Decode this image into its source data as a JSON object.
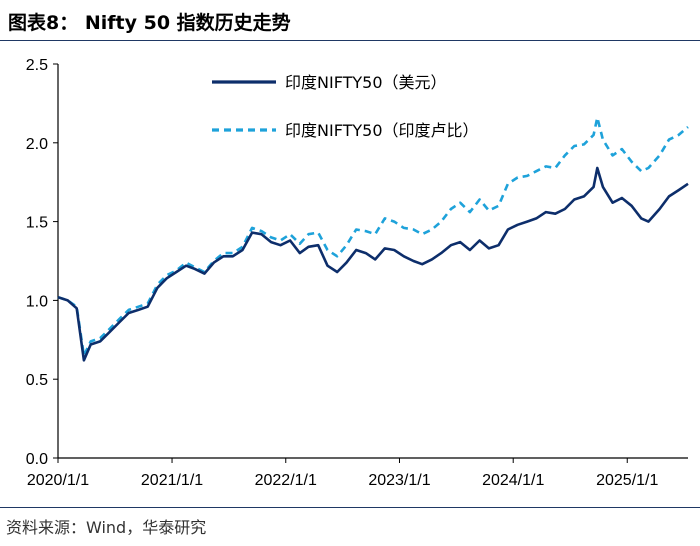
{
  "header": {
    "title": "图表8： Nifty 50 指数历史走势"
  },
  "footer": {
    "source": "资料来源：Wind，华泰研究"
  },
  "colors": {
    "usd": "#0d2e6b",
    "inr": "#1ea2da",
    "rule": "#1f3864",
    "axis": "#000000"
  },
  "chart_data": {
    "type": "line",
    "title": "",
    "xlabel": "",
    "ylabel": "",
    "ylim": [
      0,
      2.5
    ],
    "xlim": [
      "2020-01-01",
      "2025-07-15"
    ],
    "x_ticks": [
      "2020/1/1",
      "2021/1/1",
      "2022/1/1",
      "2023/1/1",
      "2024/1/1",
      "2025/1/1"
    ],
    "y_ticks": [
      "0.0",
      "0.5",
      "1.0",
      "1.5",
      "2.0",
      "2.5"
    ],
    "legend_position": "top-center",
    "grid": false,
    "series": [
      {
        "name": "印度NIFTY50（美元）",
        "style": "solid",
        "x": [
          "2020-01-01",
          "2020-02-01",
          "2020-03-01",
          "2020-03-24",
          "2020-04-15",
          "2020-05-15",
          "2020-06-15",
          "2020-07-15",
          "2020-08-15",
          "2020-09-15",
          "2020-10-15",
          "2020-11-15",
          "2020-12-15",
          "2021-01-15",
          "2021-02-15",
          "2021-03-15",
          "2021-04-15",
          "2021-05-15",
          "2021-06-15",
          "2021-07-15",
          "2021-08-15",
          "2021-09-15",
          "2021-10-15",
          "2021-11-15",
          "2021-12-15",
          "2022-01-15",
          "2022-02-15",
          "2022-03-15",
          "2022-04-15",
          "2022-05-15",
          "2022-06-15",
          "2022-07-15",
          "2022-08-15",
          "2022-09-15",
          "2022-10-15",
          "2022-11-15",
          "2022-12-15",
          "2023-01-15",
          "2023-02-15",
          "2023-03-15",
          "2023-04-15",
          "2023-05-15",
          "2023-06-15",
          "2023-07-15",
          "2023-08-15",
          "2023-09-15",
          "2023-10-15",
          "2023-11-15",
          "2023-12-15",
          "2024-01-15",
          "2024-02-15",
          "2024-03-15",
          "2024-04-15",
          "2024-05-15",
          "2024-06-15",
          "2024-07-15",
          "2024-08-15",
          "2024-09-15",
          "2024-09-27",
          "2024-10-15",
          "2024-11-15",
          "2024-12-15",
          "2025-01-15",
          "2025-02-15",
          "2025-03-10",
          "2025-04-15",
          "2025-05-15",
          "2025-06-15",
          "2025-07-15"
        ],
        "values": [
          1.02,
          1.0,
          0.95,
          0.62,
          0.72,
          0.74,
          0.8,
          0.86,
          0.92,
          0.94,
          0.96,
          1.08,
          1.14,
          1.18,
          1.22,
          1.2,
          1.17,
          1.24,
          1.28,
          1.28,
          1.32,
          1.43,
          1.42,
          1.37,
          1.35,
          1.38,
          1.3,
          1.34,
          1.35,
          1.22,
          1.18,
          1.24,
          1.32,
          1.3,
          1.26,
          1.33,
          1.32,
          1.28,
          1.25,
          1.23,
          1.26,
          1.3,
          1.35,
          1.37,
          1.32,
          1.38,
          1.33,
          1.35,
          1.45,
          1.48,
          1.5,
          1.52,
          1.56,
          1.55,
          1.58,
          1.64,
          1.66,
          1.72,
          1.84,
          1.72,
          1.62,
          1.65,
          1.6,
          1.52,
          1.5,
          1.58,
          1.66,
          1.7,
          1.74
        ]
      },
      {
        "name": "印度NIFTY50（印度卢比）",
        "style": "dashed",
        "x": [
          "2020-01-01",
          "2020-02-01",
          "2020-03-01",
          "2020-03-24",
          "2020-04-15",
          "2020-05-15",
          "2020-06-15",
          "2020-07-15",
          "2020-08-15",
          "2020-09-15",
          "2020-10-15",
          "2020-11-15",
          "2020-12-15",
          "2021-01-15",
          "2021-02-15",
          "2021-03-15",
          "2021-04-15",
          "2021-05-15",
          "2021-06-15",
          "2021-07-15",
          "2021-08-15",
          "2021-09-15",
          "2021-10-15",
          "2021-11-15",
          "2021-12-15",
          "2022-01-15",
          "2022-02-15",
          "2022-03-15",
          "2022-04-15",
          "2022-05-15",
          "2022-06-15",
          "2022-07-15",
          "2022-08-15",
          "2022-09-15",
          "2022-10-15",
          "2022-11-15",
          "2022-12-15",
          "2023-01-15",
          "2023-02-15",
          "2023-03-15",
          "2023-04-15",
          "2023-05-15",
          "2023-06-15",
          "2023-07-15",
          "2023-08-15",
          "2023-09-15",
          "2023-10-15",
          "2023-11-15",
          "2023-12-15",
          "2024-01-15",
          "2024-02-15",
          "2024-03-15",
          "2024-04-15",
          "2024-05-15",
          "2024-06-15",
          "2024-07-15",
          "2024-08-15",
          "2024-09-15",
          "2024-09-27",
          "2024-10-15",
          "2024-11-15",
          "2024-12-15",
          "2025-01-15",
          "2025-02-15",
          "2025-03-10",
          "2025-04-15",
          "2025-05-15",
          "2025-06-15",
          "2025-07-15"
        ],
        "values": [
          1.02,
          1.0,
          0.96,
          0.65,
          0.74,
          0.76,
          0.82,
          0.88,
          0.94,
          0.96,
          0.98,
          1.1,
          1.16,
          1.19,
          1.24,
          1.21,
          1.18,
          1.25,
          1.3,
          1.3,
          1.34,
          1.46,
          1.44,
          1.4,
          1.38,
          1.42,
          1.36,
          1.42,
          1.43,
          1.32,
          1.28,
          1.35,
          1.45,
          1.44,
          1.42,
          1.52,
          1.5,
          1.46,
          1.45,
          1.42,
          1.45,
          1.5,
          1.58,
          1.62,
          1.56,
          1.64,
          1.57,
          1.6,
          1.74,
          1.78,
          1.79,
          1.82,
          1.85,
          1.84,
          1.92,
          1.98,
          1.99,
          2.05,
          2.16,
          2.02,
          1.92,
          1.96,
          1.88,
          1.82,
          1.84,
          1.92,
          2.02,
          2.05,
          2.1
        ]
      }
    ]
  }
}
